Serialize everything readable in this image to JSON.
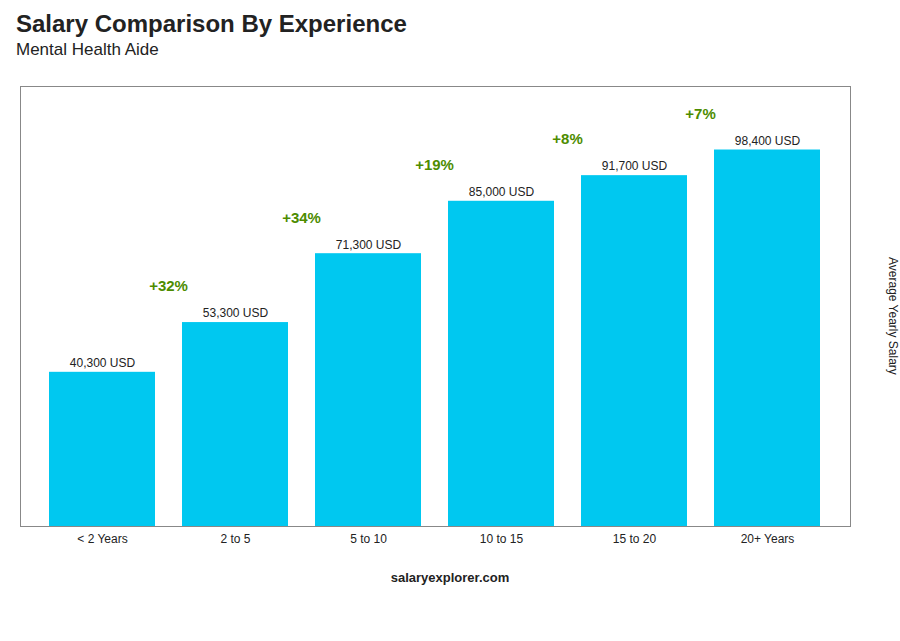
{
  "chart_data": {
    "type": "bar",
    "title": "Salary Comparison By Experience",
    "subtitle": "Mental Health Aide",
    "ylabel": "Average Yearly Salary",
    "categories": [
      "< 2 Years",
      "2 to 5",
      "5 to 10",
      "10 to 15",
      "15 to 20",
      "20+ Years"
    ],
    "values": [
      40300,
      53300,
      71300,
      85000,
      91700,
      98400
    ],
    "value_labels": [
      "40,300 USD",
      "53,300 USD",
      "71,300 USD",
      "85,000 USD",
      "91,700 USD",
      "98,400 USD"
    ],
    "data_labels": true,
    "color": "#00c8f0",
    "ylim": [
      0,
      115000
    ],
    "tick_labels": "x",
    "annotations": [
      "+32%",
      "+34%",
      "+19%",
      "+8%",
      "+7%"
    ],
    "caption": "salaryexplorer.com"
  }
}
